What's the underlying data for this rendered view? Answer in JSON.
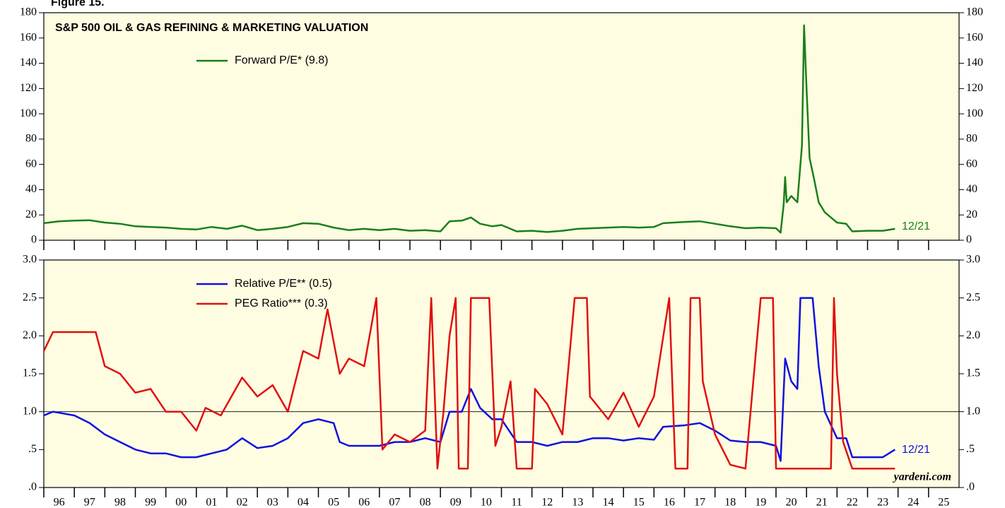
{
  "figure_label": "Figure 15.",
  "chart_data": [
    {
      "type": "line",
      "title": "S&P 500 OIL & GAS REFINING & MARKETING VALUATION",
      "xlim": [
        1996,
        2026
      ],
      "ylim": [
        0,
        180
      ],
      "yticks": [
        0,
        20,
        40,
        60,
        80,
        100,
        120,
        140,
        160,
        180
      ],
      "annotation": "12/21",
      "series": [
        {
          "name": "Forward P/E* (9.8)",
          "color": "#1a7f1a",
          "x": [
            1996.0,
            1996.5,
            1997.0,
            1997.5,
            1998.0,
            1998.5,
            1999.0,
            1999.5,
            2000.0,
            2000.5,
            2001.0,
            2001.5,
            2002.0,
            2002.5,
            2003.0,
            2003.5,
            2004.0,
            2004.5,
            2005.0,
            2005.5,
            2006.0,
            2006.5,
            2007.0,
            2007.5,
            2008.0,
            2008.5,
            2009.0,
            2009.3,
            2009.7,
            2010.0,
            2010.3,
            2010.7,
            2011.0,
            2011.5,
            2012.0,
            2012.5,
            2013.0,
            2013.5,
            2014.0,
            2014.5,
            2015.0,
            2015.5,
            2016.0,
            2016.3,
            2017.0,
            2017.5,
            2018.0,
            2018.5,
            2019.0,
            2019.5,
            2020.0,
            2020.15,
            2020.25,
            2020.3,
            2020.35,
            2020.5,
            2020.7,
            2020.85,
            2020.92,
            2021.0,
            2021.1,
            2021.25,
            2021.4,
            2021.6,
            2022.0,
            2022.3,
            2022.5,
            2023.0,
            2023.5,
            2023.9
          ],
          "values": [
            13.5,
            15,
            15.5,
            15.8,
            14,
            13,
            11,
            10.5,
            10,
            9,
            8.5,
            10.5,
            9,
            11.5,
            8,
            9,
            10.5,
            13.5,
            13,
            10,
            8,
            9,
            8,
            9,
            7.5,
            8,
            7,
            15,
            15.5,
            18,
            13,
            11,
            12,
            7,
            7.5,
            6.5,
            7.5,
            9,
            9.5,
            10,
            10.5,
            10,
            10.5,
            13.5,
            14.5,
            15,
            13,
            11,
            9.5,
            10,
            9.5,
            6,
            28,
            50,
            30,
            35,
            30,
            75,
            170,
            120,
            65,
            48,
            30,
            22,
            14,
            13,
            7,
            7.5,
            7.5,
            9
          ]
        }
      ]
    },
    {
      "type": "line",
      "xlim": [
        1996,
        2026
      ],
      "xticks": [
        {
          "value": 1996,
          "label": "96"
        },
        {
          "value": 1997,
          "label": "97"
        },
        {
          "value": 1998,
          "label": "98"
        },
        {
          "value": 1999,
          "label": "99"
        },
        {
          "value": 2000,
          "label": "00"
        },
        {
          "value": 2001,
          "label": "01"
        },
        {
          "value": 2002,
          "label": "02"
        },
        {
          "value": 2003,
          "label": "03"
        },
        {
          "value": 2004,
          "label": "04"
        },
        {
          "value": 2005,
          "label": "05"
        },
        {
          "value": 2006,
          "label": "06"
        },
        {
          "value": 2007,
          "label": "07"
        },
        {
          "value": 2008,
          "label": "08"
        },
        {
          "value": 2009,
          "label": "09"
        },
        {
          "value": 2010,
          "label": "10"
        },
        {
          "value": 2011,
          "label": "11"
        },
        {
          "value": 2012,
          "label": "12"
        },
        {
          "value": 2013,
          "label": "13"
        },
        {
          "value": 2014,
          "label": "14"
        },
        {
          "value": 2015,
          "label": "15"
        },
        {
          "value": 2016,
          "label": "16"
        },
        {
          "value": 2017,
          "label": "17"
        },
        {
          "value": 2018,
          "label": "18"
        },
        {
          "value": 2019,
          "label": "19"
        },
        {
          "value": 2020,
          "label": "20"
        },
        {
          "value": 2021,
          "label": "21"
        },
        {
          "value": 2022,
          "label": "22"
        },
        {
          "value": 2023,
          "label": "23"
        },
        {
          "value": 2024,
          "label": "24"
        },
        {
          "value": 2025,
          "label": "25"
        }
      ],
      "ylim": [
        0,
        3
      ],
      "yticks": [
        {
          "value": 0,
          "label": ".0"
        },
        {
          "value": 0.5,
          "label": ".5"
        },
        {
          "value": 1,
          "label": "1.0"
        },
        1.5,
        {
          "value": 2,
          "label": "2.0"
        },
        2.5,
        {
          "value": 3,
          "label": "3.0"
        }
      ],
      "hline": 1,
      "annotation": "12/21",
      "source": "yardeni.com",
      "series": [
        {
          "name": "Relative P/E** (0.5)",
          "color": "#1010e0",
          "x": [
            1996.0,
            1996.3,
            1997.0,
            1997.5,
            1998.0,
            1998.5,
            1999.0,
            1999.5,
            2000.0,
            2000.5,
            2001.0,
            2001.5,
            2002.0,
            2002.5,
            2003.0,
            2003.5,
            2004.0,
            2004.5,
            2005.0,
            2005.5,
            2005.7,
            2006.0,
            2006.5,
            2007.0,
            2007.5,
            2008.0,
            2008.5,
            2009.0,
            2009.3,
            2009.7,
            2010.0,
            2010.3,
            2010.7,
            2011.0,
            2011.5,
            2012.0,
            2012.5,
            2013.0,
            2013.5,
            2014.0,
            2014.5,
            2015.0,
            2015.5,
            2016.0,
            2016.3,
            2017.0,
            2017.5,
            2018.0,
            2018.5,
            2019.0,
            2019.5,
            2020.0,
            2020.15,
            2020.3,
            2020.5,
            2020.7,
            2020.8,
            2021.2,
            2021.4,
            2021.6,
            2022.0,
            2022.3,
            2022.5,
            2023.0,
            2023.5,
            2023.9
          ],
          "values": [
            0.95,
            1.0,
            0.95,
            0.85,
            0.7,
            0.6,
            0.5,
            0.45,
            0.45,
            0.4,
            0.4,
            0.45,
            0.5,
            0.65,
            0.52,
            0.55,
            0.65,
            0.85,
            0.9,
            0.85,
            0.6,
            0.55,
            0.55,
            0.55,
            0.6,
            0.6,
            0.65,
            0.6,
            1.0,
            1.0,
            1.3,
            1.05,
            0.9,
            0.9,
            0.6,
            0.6,
            0.55,
            0.6,
            0.6,
            0.65,
            0.65,
            0.62,
            0.65,
            0.63,
            0.8,
            0.82,
            0.85,
            0.75,
            0.62,
            0.6,
            0.6,
            0.55,
            0.35,
            1.7,
            1.4,
            1.3,
            2.5,
            2.5,
            1.6,
            1.0,
            0.65,
            0.65,
            0.4,
            0.4,
            0.4,
            0.5
          ]
        },
        {
          "name": "PEG Ratio*** (0.3)",
          "color": "#e01010",
          "x": [
            1996.0,
            1996.3,
            1997.0,
            1997.7,
            1998.0,
            1998.5,
            1999.0,
            1999.5,
            2000.0,
            2000.5,
            2001.0,
            2001.3,
            2001.8,
            2002.5,
            2003.0,
            2003.5,
            2004.0,
            2004.5,
            2005.0,
            2005.3,
            2005.7,
            2006.0,
            2006.5,
            2006.9,
            2007.1,
            2007.5,
            2008.0,
            2008.5,
            2008.7,
            2008.9,
            2009.1,
            2009.3,
            2009.5,
            2009.6,
            2009.9,
            2010.0,
            2010.6,
            2010.8,
            2011.0,
            2011.3,
            2011.5,
            2012.0,
            2012.1,
            2012.5,
            2013.0,
            2013.4,
            2013.8,
            2013.9,
            2014.5,
            2015.0,
            2015.5,
            2016.0,
            2016.5,
            2016.7,
            2017.1,
            2017.2,
            2017.5,
            2017.6,
            2018.0,
            2018.5,
            2019.0,
            2019.5,
            2019.9,
            2020.0,
            2021.8,
            2021.9,
            2022.0,
            2022.2,
            2022.5,
            2023.0,
            2023.9
          ],
          "values": [
            1.8,
            2.05,
            2.05,
            2.05,
            1.6,
            1.5,
            1.25,
            1.3,
            1.0,
            1.0,
            0.75,
            1.05,
            0.95,
            1.45,
            1.2,
            1.35,
            1.0,
            1.8,
            1.7,
            2.35,
            1.5,
            1.7,
            1.6,
            2.5,
            0.5,
            0.7,
            0.6,
            0.75,
            2.5,
            0.25,
            1.0,
            2.0,
            2.5,
            0.25,
            0.25,
            2.5,
            2.5,
            0.55,
            0.8,
            1.4,
            0.25,
            0.25,
            1.3,
            1.1,
            0.7,
            2.5,
            2.5,
            1.2,
            0.9,
            1.25,
            0.8,
            1.2,
            2.5,
            0.25,
            0.25,
            2.5,
            2.5,
            1.4,
            0.7,
            0.3,
            0.25,
            2.5,
            2.5,
            0.25,
            0.25,
            2.5,
            1.5,
            0.6,
            0.25,
            0.25,
            0.25
          ]
        }
      ]
    }
  ]
}
